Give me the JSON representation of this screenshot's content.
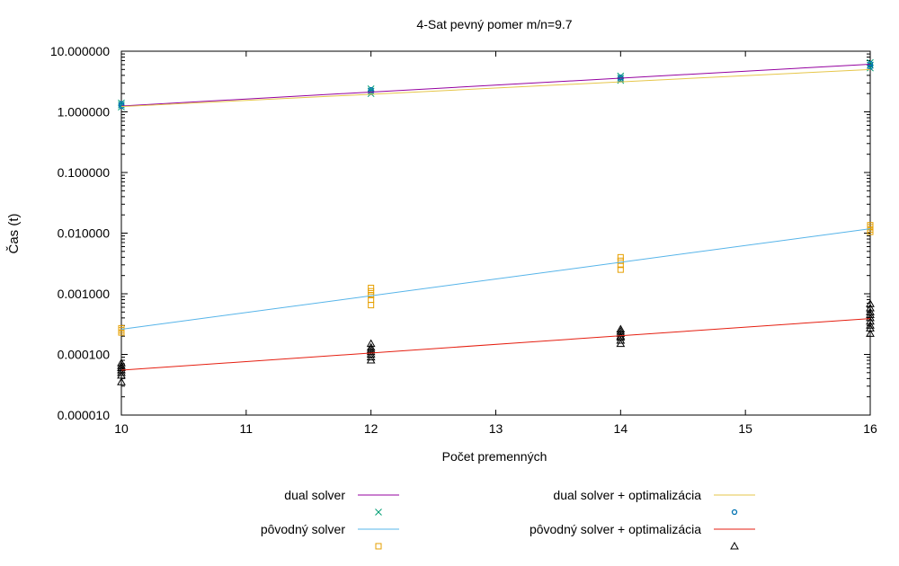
{
  "chart_data": {
    "type": "scatter",
    "title": "4-Sat pevný pomer m/n=9.7",
    "xlabel": "Počet premenných",
    "ylabel": "Čas (t)",
    "xlim": [
      10,
      16
    ],
    "ylim": [
      1e-05,
      10
    ],
    "yscale": "log",
    "grid": false,
    "legend_position": "bottom",
    "x_ticks": [
      {
        "value": 10,
        "label": "10"
      },
      {
        "value": 11,
        "label": "11"
      },
      {
        "value": 12,
        "label": "12"
      },
      {
        "value": 13,
        "label": "13"
      },
      {
        "value": 14,
        "label": "14"
      },
      {
        "value": 15,
        "label": "15"
      },
      {
        "value": 16,
        "label": "16"
      }
    ],
    "y_ticks": [
      {
        "value": 1e-05,
        "label": "0.000010"
      },
      {
        "value": 0.0001,
        "label": "0.000100"
      },
      {
        "value": 0.001,
        "label": "0.001000"
      },
      {
        "value": 0.01,
        "label": "0.010000"
      },
      {
        "value": 0.1,
        "label": "0.100000"
      },
      {
        "value": 1,
        "label": "1.000000"
      },
      {
        "value": 10,
        "label": "10.000000"
      }
    ],
    "series": [
      {
        "name": "dual solver",
        "color": "#94009f",
        "marker": "x",
        "marker_color": "#009e73",
        "fit": [
          {
            "x": 10,
            "y": 1.25
          },
          {
            "x": 16,
            "y": 6.1
          }
        ],
        "points": [
          {
            "x": 10,
            "y": 1.2
          },
          {
            "x": 10,
            "y": 1.3
          },
          {
            "x": 10,
            "y": 1.4
          },
          {
            "x": 12,
            "y": 2.0
          },
          {
            "x": 12,
            "y": 2.2
          },
          {
            "x": 12,
            "y": 2.4
          },
          {
            "x": 14,
            "y": 3.3
          },
          {
            "x": 14,
            "y": 3.6
          },
          {
            "x": 14,
            "y": 3.9
          },
          {
            "x": 16,
            "y": 5.3
          },
          {
            "x": 16,
            "y": 5.9
          },
          {
            "x": 16,
            "y": 6.5
          }
        ]
      },
      {
        "name": "dual solver + optimalizácia",
        "color": "#e6c64a",
        "marker": "circle",
        "marker_color": "#0072b2",
        "fit": [
          {
            "x": 10,
            "y": 1.22
          },
          {
            "x": 16,
            "y": 5.0
          }
        ],
        "points": [
          {
            "x": 10,
            "y": 1.25
          },
          {
            "x": 10,
            "y": 1.35
          },
          {
            "x": 12,
            "y": 2.1
          },
          {
            "x": 12,
            "y": 2.3
          },
          {
            "x": 14,
            "y": 3.4
          },
          {
            "x": 14,
            "y": 3.7
          },
          {
            "x": 16,
            "y": 5.5
          },
          {
            "x": 16,
            "y": 6.2
          }
        ]
      },
      {
        "name": "pôvodný solver",
        "color": "#56b4e9",
        "marker": "square",
        "marker_color": "#e69f00",
        "fit": [
          {
            "x": 10,
            "y": 0.00026
          },
          {
            "x": 16,
            "y": 0.0118
          }
        ],
        "points": [
          {
            "x": 10,
            "y": 0.00023
          },
          {
            "x": 10,
            "y": 0.00025
          },
          {
            "x": 10,
            "y": 0.00027
          },
          {
            "x": 12,
            "y": 0.00065
          },
          {
            "x": 12,
            "y": 0.0008
          },
          {
            "x": 12,
            "y": 0.00095
          },
          {
            "x": 12,
            "y": 0.0011
          },
          {
            "x": 12,
            "y": 0.00125
          },
          {
            "x": 14,
            "y": 0.0025
          },
          {
            "x": 14,
            "y": 0.003
          },
          {
            "x": 14,
            "y": 0.0035
          },
          {
            "x": 14,
            "y": 0.004
          },
          {
            "x": 16,
            "y": 0.0105
          },
          {
            "x": 16,
            "y": 0.0115
          },
          {
            "x": 16,
            "y": 0.0125
          },
          {
            "x": 16,
            "y": 0.0135
          }
        ]
      },
      {
        "name": "pôvodný solver + optimalizácia",
        "color": "#e51e10",
        "marker": "triangle",
        "marker_color": "#000000",
        "fit": [
          {
            "x": 10,
            "y": 5.5e-05
          },
          {
            "x": 16,
            "y": 0.00039
          }
        ],
        "points": [
          {
            "x": 10,
            "y": 3.5e-05
          },
          {
            "x": 10,
            "y": 4.5e-05
          },
          {
            "x": 10,
            "y": 5e-05
          },
          {
            "x": 10,
            "y": 5.5e-05
          },
          {
            "x": 10,
            "y": 6e-05
          },
          {
            "x": 10,
            "y": 6.5e-05
          },
          {
            "x": 10,
            "y": 7.2e-05
          },
          {
            "x": 12,
            "y": 8e-05
          },
          {
            "x": 12,
            "y": 9e-05
          },
          {
            "x": 12,
            "y": 0.0001
          },
          {
            "x": 12,
            "y": 0.00011
          },
          {
            "x": 12,
            "y": 0.00012
          },
          {
            "x": 12,
            "y": 0.00013
          },
          {
            "x": 12,
            "y": 0.00015
          },
          {
            "x": 14,
            "y": 0.00015
          },
          {
            "x": 14,
            "y": 0.00017
          },
          {
            "x": 14,
            "y": 0.00019
          },
          {
            "x": 14,
            "y": 0.0002
          },
          {
            "x": 14,
            "y": 0.00022
          },
          {
            "x": 14,
            "y": 0.00024
          },
          {
            "x": 14,
            "y": 0.00026
          },
          {
            "x": 16,
            "y": 0.00022
          },
          {
            "x": 16,
            "y": 0.00027
          },
          {
            "x": 16,
            "y": 0.0003
          },
          {
            "x": 16,
            "y": 0.00035
          },
          {
            "x": 16,
            "y": 0.0004
          },
          {
            "x": 16,
            "y": 0.00045
          },
          {
            "x": 16,
            "y": 0.0005
          },
          {
            "x": 16,
            "y": 0.00058
          },
          {
            "x": 16,
            "y": 0.00068
          }
        ]
      }
    ]
  }
}
